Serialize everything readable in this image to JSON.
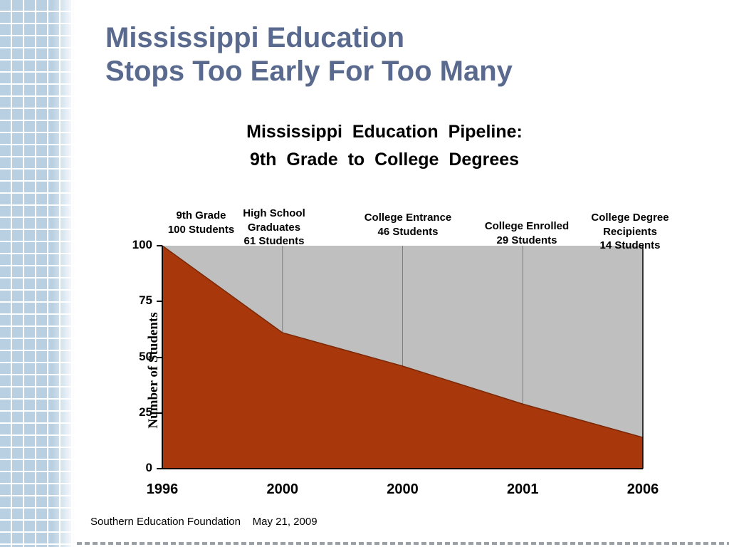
{
  "slide": {
    "title_line1": "Mississippi Education",
    "title_line2": "Stops Too Early For Too Many",
    "subtitle_line1": "Mississippi  Education  Pipeline:",
    "subtitle_line2": "9th Grade to College Degrees",
    "footer": "Southern Education Foundation    May 21, 2009",
    "title_color": "#5a6a8e"
  },
  "chart_data": {
    "type": "area",
    "title": "Mississippi Education Pipeline: 9th Grade to College Degrees",
    "categories": [
      "1996",
      "2000",
      "2000",
      "2001",
      "2006"
    ],
    "values": [
      100,
      61,
      46,
      29,
      14
    ],
    "annotations": [
      {
        "lines": [
          "9th Grade",
          "100 Students"
        ]
      },
      {
        "lines": [
          "High School",
          "Graduates",
          "61 Students"
        ]
      },
      {
        "lines": [
          "College Entrance",
          "46 Students"
        ]
      },
      {
        "lines": [
          "College Enrolled",
          "29 Students"
        ]
      },
      {
        "lines": [
          "College Degree",
          "Recipients",
          "14 Students"
        ]
      }
    ],
    "xlabel": "",
    "ylabel": "Number of Students",
    "yticks": [
      0,
      25,
      50,
      75,
      100
    ],
    "ylim": [
      0,
      100
    ],
    "grid": "vertical-interior",
    "legend": "none",
    "area_color": "#a8380b",
    "area_line_color": "#7a2807",
    "plot_bg": "#bfbfbf",
    "gridline_color": "#7f7f7f",
    "axis_color": "#000000"
  }
}
